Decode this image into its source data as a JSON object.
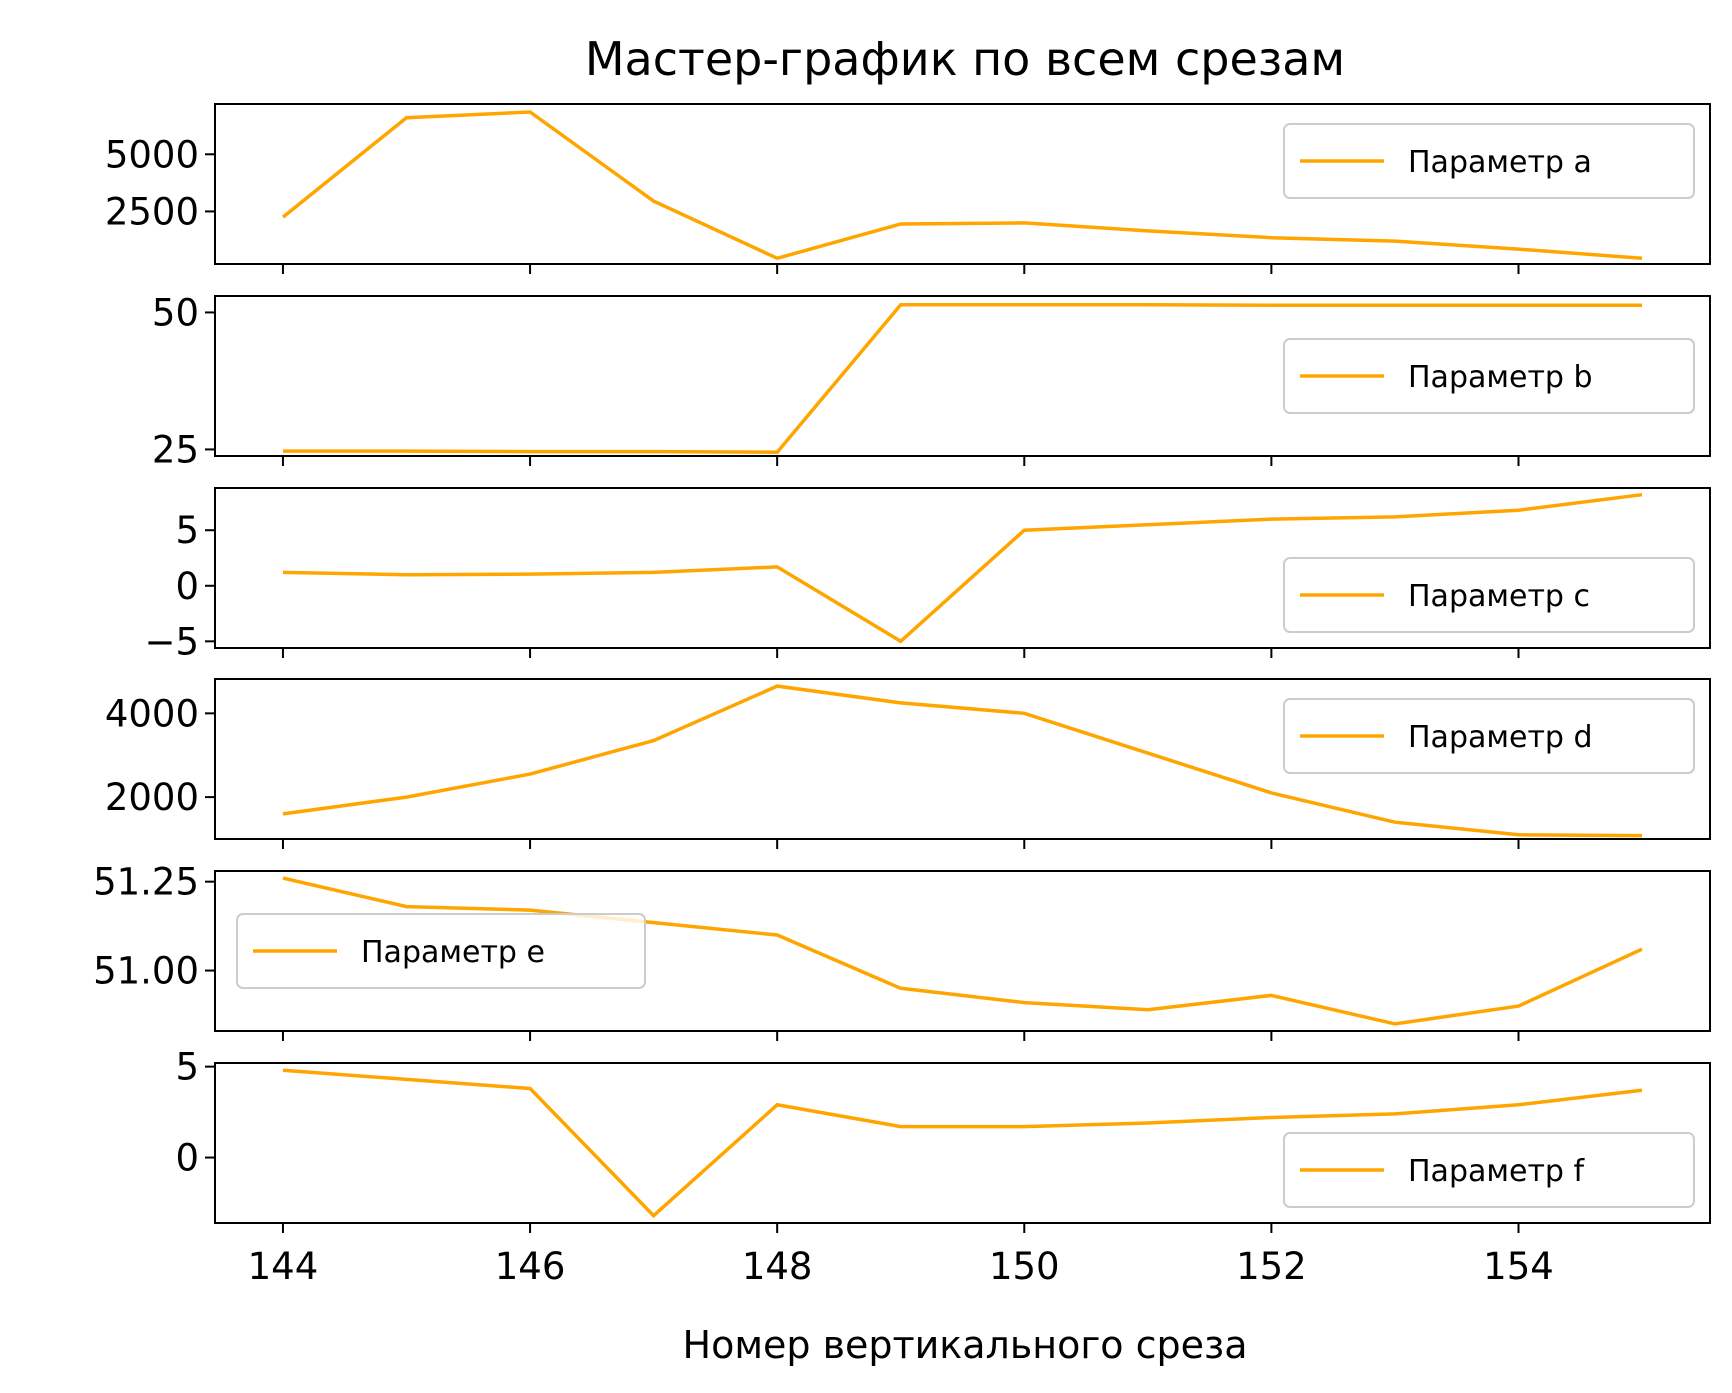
{
  "chart_data": {
    "type": "line",
    "title": "Мастер-график по всем срезам",
    "xlabel": "Номер вертикального среза",
    "x": [
      144,
      145,
      146,
      147,
      148,
      149,
      150,
      151,
      152,
      153,
      154,
      155
    ],
    "xlim": [
      143.45,
      155.55
    ],
    "xticks": [
      144,
      146,
      148,
      150,
      152,
      154
    ],
    "line_color": "#FFA500",
    "panels": [
      {
        "series_name": "Параметр a",
        "values": [
          2250,
          6600,
          6850,
          2950,
          450,
          1950,
          2000,
          1650,
          1350,
          1200,
          850,
          450
        ],
        "ylim": [
          200,
          7200
        ],
        "yticks": [
          2500,
          5000
        ],
        "ytick_labels": [
          "2500",
          "5000"
        ],
        "legend_loc": "upper-right"
      },
      {
        "series_name": "Параметр b",
        "values": [
          24.7,
          24.7,
          24.6,
          24.6,
          24.5,
          51.4,
          51.4,
          51.4,
          51.3,
          51.3,
          51.3,
          51.3
        ],
        "ylim": [
          23.8,
          53.0
        ],
        "yticks": [
          25,
          50
        ],
        "ytick_labels": [
          "25",
          "50"
        ],
        "legend_loc": "center-right"
      },
      {
        "series_name": "Параметр c",
        "values": [
          1.2,
          1.0,
          1.05,
          1.2,
          1.7,
          -5.0,
          5.0,
          5.5,
          6.0,
          6.2,
          6.8,
          8.2
        ],
        "ylim": [
          -5.6,
          8.8
        ],
        "yticks": [
          -5,
          0,
          5
        ],
        "ytick_labels": [
          "−5",
          "0",
          "5"
        ],
        "legend_loc": "lower-right"
      },
      {
        "series_name": "Параметр d",
        "values": [
          1600,
          2000,
          2550,
          3350,
          4650,
          4250,
          4000,
          3050,
          2100,
          1400,
          1100,
          1080
        ],
        "ylim": [
          1000,
          4820
        ],
        "yticks": [
          2000,
          4000
        ],
        "ytick_labels": [
          "2000",
          "4000"
        ],
        "legend_loc": "upper-right"
      },
      {
        "series_name": "Параметр e",
        "values": [
          51.26,
          51.18,
          51.17,
          51.135,
          51.1,
          50.95,
          50.91,
          50.89,
          50.93,
          50.85,
          50.9,
          51.06
        ],
        "ylim": [
          50.83,
          51.28
        ],
        "yticks": [
          51.0,
          51.25
        ],
        "ytick_labels": [
          "51.00",
          "51.25"
        ],
        "legend_loc": "center-left"
      },
      {
        "series_name": "Параметр f",
        "values": [
          4.8,
          4.3,
          3.8,
          -3.2,
          2.9,
          1.7,
          1.7,
          1.9,
          2.2,
          2.4,
          2.9,
          3.7
        ],
        "ylim": [
          -3.6,
          5.2
        ],
        "yticks": [
          0,
          5
        ],
        "ytick_labels": [
          "0",
          "5"
        ],
        "legend_loc": "lower-right"
      }
    ]
  }
}
